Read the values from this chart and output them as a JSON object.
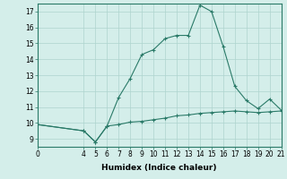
{
  "xlabel": "Humidex (Indice chaleur)",
  "background_color": "#d4eeea",
  "grid_color": "#aed4ce",
  "line_color": "#2a7a68",
  "x_main": [
    0,
    4,
    5,
    6,
    7,
    8,
    9,
    10,
    11,
    12,
    13,
    14,
    15,
    16,
    17,
    18,
    19,
    20,
    21
  ],
  "y_main": [
    9.9,
    9.5,
    8.8,
    9.8,
    11.6,
    12.8,
    14.3,
    14.6,
    15.3,
    15.5,
    15.5,
    17.4,
    17.0,
    14.8,
    12.3,
    11.4,
    10.9,
    11.5,
    10.8
  ],
  "x_second": [
    0,
    4,
    5,
    6,
    7,
    8,
    9,
    10,
    11,
    12,
    13,
    14,
    15,
    16,
    17,
    18,
    19,
    20,
    21
  ],
  "y_second": [
    9.9,
    9.5,
    8.8,
    9.8,
    9.9,
    10.05,
    10.1,
    10.2,
    10.3,
    10.45,
    10.5,
    10.6,
    10.65,
    10.7,
    10.75,
    10.7,
    10.65,
    10.7,
    10.75
  ],
  "xlim": [
    0,
    21
  ],
  "ylim": [
    8.5,
    17.5
  ],
  "yticks": [
    9,
    10,
    11,
    12,
    13,
    14,
    15,
    16,
    17
  ],
  "xticks": [
    0,
    4,
    5,
    6,
    7,
    8,
    9,
    10,
    11,
    12,
    13,
    14,
    15,
    16,
    17,
    18,
    19,
    20,
    21
  ],
  "tick_fontsize": 5.5,
  "label_fontsize": 6.5
}
